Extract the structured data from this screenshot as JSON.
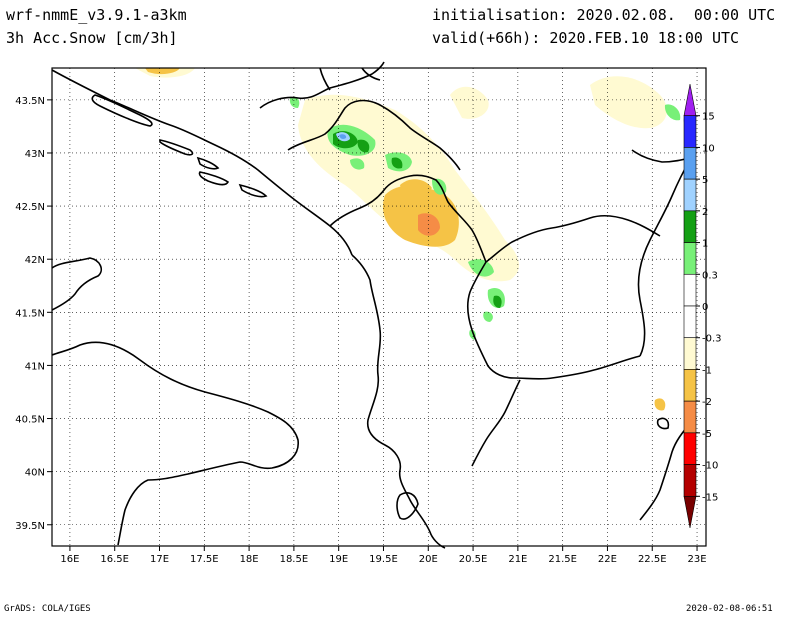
{
  "header": {
    "model": "wrf-nmmE_v3.9.1-a3km",
    "field": "3h Acc.Snow [cm/3h]",
    "init": "initialisation: 2020.02.08.  00:00 UTC",
    "valid": "valid(+66h): 2020.FEB.10 18:00 UTC"
  },
  "footer": {
    "credit": "GrADS: COLA/IGES",
    "timestamp": "2020-02-08-06:51"
  },
  "map": {
    "lat_range": [
      39.3,
      43.8
    ],
    "lon_range": [
      15.8,
      23.1
    ],
    "lat_ticks": [
      {
        "value": 43.5,
        "label": "43.5N"
      },
      {
        "value": 43.0,
        "label": "43N"
      },
      {
        "value": 42.5,
        "label": "42.5N"
      },
      {
        "value": 42.0,
        "label": "42N"
      },
      {
        "value": 41.5,
        "label": "41.5N"
      },
      {
        "value": 41.0,
        "label": "41N"
      },
      {
        "value": 40.5,
        "label": "40.5N"
      },
      {
        "value": 40.0,
        "label": "40N"
      },
      {
        "value": 39.5,
        "label": "39.5N"
      }
    ],
    "lon_ticks": [
      {
        "value": 16.0,
        "label": "16E"
      },
      {
        "value": 16.5,
        "label": "16.5E"
      },
      {
        "value": 17.0,
        "label": "17E"
      },
      {
        "value": 17.5,
        "label": "17.5E"
      },
      {
        "value": 18.0,
        "label": "18E"
      },
      {
        "value": 18.5,
        "label": "18.5E"
      },
      {
        "value": 19.0,
        "label": "19E"
      },
      {
        "value": 19.5,
        "label": "19.5E"
      },
      {
        "value": 20.0,
        "label": "20E"
      },
      {
        "value": 20.5,
        "label": "20.5E"
      },
      {
        "value": 21.0,
        "label": "21E"
      },
      {
        "value": 21.5,
        "label": "21.5E"
      },
      {
        "value": 22.0,
        "label": "22E"
      },
      {
        "value": 22.5,
        "label": "22.5E"
      },
      {
        "value": 23.0,
        "label": "23E"
      }
    ],
    "grid": "dotted"
  },
  "colorbar": {
    "bins": [
      {
        "color": "#a020f0"
      },
      {
        "color": "#2828ff"
      },
      {
        "color": "#5aa0f0"
      },
      {
        "color": "#a0d2ff"
      },
      {
        "color": "#14a014"
      },
      {
        "color": "#78f078"
      },
      {
        "color": "#ffffff"
      },
      {
        "color": "#ffffff"
      },
      {
        "color": "#fffad2"
      },
      {
        "color": "#f5c346"
      },
      {
        "color": "#f58c46"
      },
      {
        "color": "#ff0000"
      },
      {
        "color": "#b40000"
      },
      {
        "color": "#780000"
      }
    ],
    "labels": [
      "15",
      "10",
      "5",
      "2",
      "1",
      "0.3",
      "0",
      "-0.3",
      "-1",
      "-2",
      "-5",
      "-10",
      "-15"
    ]
  }
}
